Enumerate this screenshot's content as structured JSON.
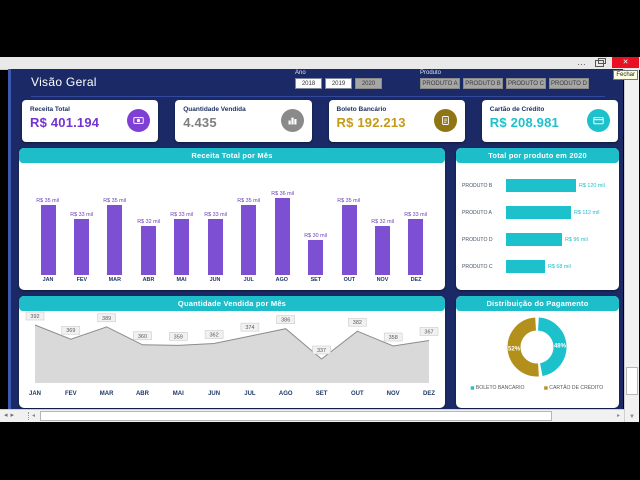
{
  "window": {
    "ribbon_ellipsis": "…",
    "close_glyph": "✕",
    "close_tooltip": "Fechar"
  },
  "header": {
    "title": "Visão Geral"
  },
  "filters": {
    "ano": {
      "label": "Ano",
      "options": [
        {
          "label": "2018",
          "selected": true
        },
        {
          "label": "2019",
          "selected": true
        },
        {
          "label": "2020",
          "selected": false
        }
      ]
    },
    "produto": {
      "label": "Produto",
      "options": [
        {
          "label": "PRODUTO A",
          "selected": false
        },
        {
          "label": "PRODUTO B",
          "selected": false
        },
        {
          "label": "PRODUTO C",
          "selected": false
        },
        {
          "label": "PRODUTO D",
          "selected": false
        }
      ]
    }
  },
  "kpis": [
    {
      "label": "Receita Total",
      "value": "R$ 401.194",
      "icon": "money-icon",
      "color": "#7334cf"
    },
    {
      "label": "Quantidade Vendida",
      "value": "4.435",
      "icon": "bar-chart-icon",
      "color": "#7f7f7f"
    },
    {
      "label": "Boleto Bancário",
      "value": "R$ 192.213",
      "icon": "document-icon",
      "color": "#c49a16"
    },
    {
      "label": "Cartão de Crédito",
      "value": "R$ 208.981",
      "icon": "credit-card-icon",
      "color": "#1dc1cc"
    }
  ],
  "chart_data": [
    {
      "type": "bar",
      "title": "Receita Total por Mês",
      "categories": [
        "JAN",
        "FEV",
        "MAR",
        "ABR",
        "MAI",
        "JUN",
        "JUL",
        "AGO",
        "SET",
        "OUT",
        "NOV",
        "DEZ"
      ],
      "values": [
        35,
        33,
        35,
        32,
        33,
        33,
        35,
        36,
        30,
        35,
        32,
        33
      ],
      "labels": [
        "R$ 35 mil",
        "R$ 33 mil",
        "R$ 35 mil",
        "R$ 32 mil",
        "R$ 33 mil",
        "R$ 33 mil",
        "R$ 35 mil",
        "R$ 36 mil",
        "R$ 30 mil",
        "R$ 35 mil",
        "R$ 32 mil",
        "R$ 33 mil"
      ],
      "unit": "R$ mil",
      "bar_color": "#7d4fd3",
      "ylim": [
        0,
        40
      ],
      "grid": false
    },
    {
      "type": "bar",
      "title": "Total por produto em 2020",
      "orientation": "horizontal",
      "categories": [
        "PRODUTO B",
        "PRODUTO A",
        "PRODUTO D",
        "PRODUTO C"
      ],
      "values": [
        120,
        112,
        96,
        68
      ],
      "labels": [
        "R$ 120 mil",
        "R$ 112 mil",
        "R$ 96 mil",
        "R$ 68 mil"
      ],
      "unit": "R$ mil",
      "bar_color": "#1dc1cc",
      "xlim": [
        0,
        130
      ],
      "grid": false
    },
    {
      "type": "area",
      "title": "Quantidade Vendida por Mês",
      "categories": [
        "JAN",
        "FEV",
        "MAR",
        "ABR",
        "MAI",
        "JUN",
        "JUL",
        "AGO",
        "SET",
        "OUT",
        "NOV",
        "DEZ"
      ],
      "values": [
        392,
        369,
        389,
        360,
        359,
        362,
        374,
        386,
        337,
        382,
        358,
        367
      ],
      "fill_color": "#d9d9d9",
      "line_color": "#8c8c8c",
      "ylim": [
        300,
        400
      ],
      "grid": false
    },
    {
      "type": "pie",
      "title": "Distribuição do Pagamento",
      "slices": [
        {
          "label": "BOLETO BANCÁRIO",
          "pct": 48,
          "color": "#1dc1cc"
        },
        {
          "label": "CARTÃO DE CRÉDITO",
          "pct": 52,
          "color": "#b3901c"
        }
      ],
      "legend": [
        "BOLETO BANCÁRIO",
        "CARTÃO DE CRÉDITO"
      ],
      "legend_position": "bottom",
      "donut": true
    }
  ]
}
